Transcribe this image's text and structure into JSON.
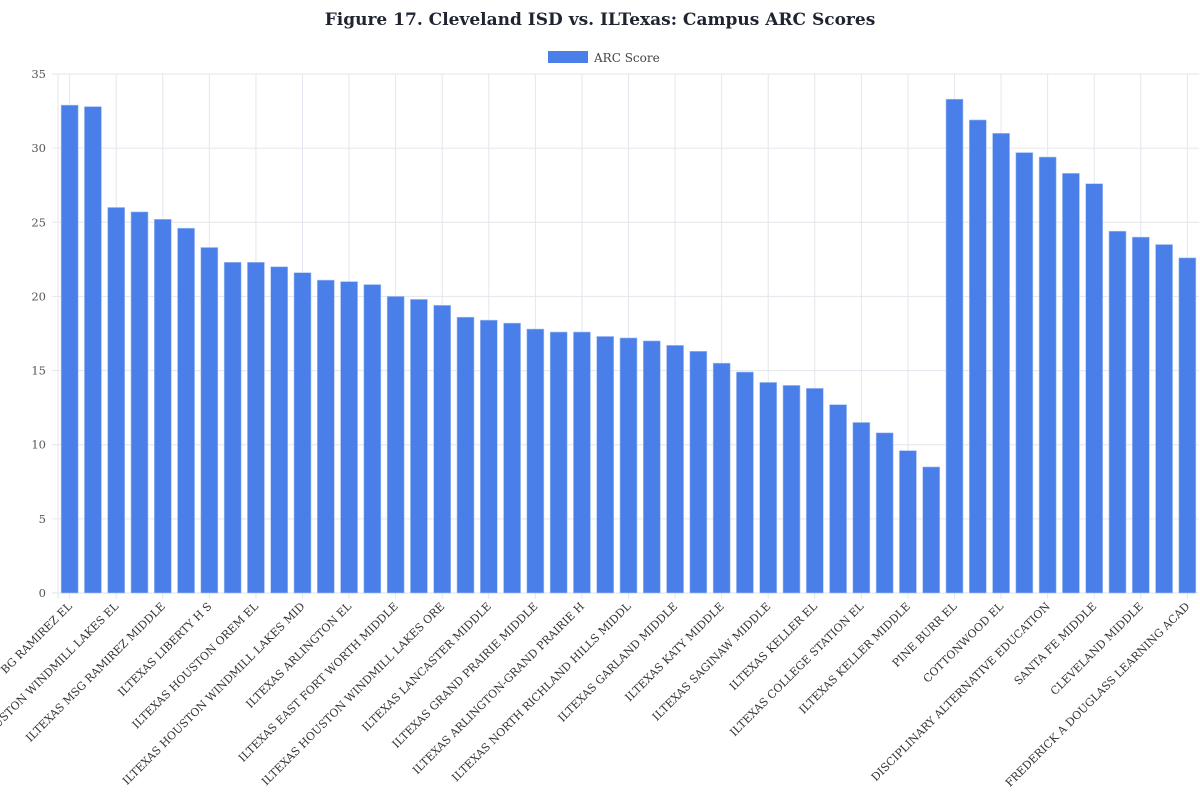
{
  "chart_data": {
    "type": "bar",
    "title": "Figure 17. Cleveland ISD vs. ILTexas: Campus ARC Scores",
    "xlabel": "",
    "ylabel": "",
    "ylim": [
      0,
      35
    ],
    "yticks": [
      0,
      5,
      10,
      15,
      20,
      25,
      30,
      35
    ],
    "grid": true,
    "legend_position": "top",
    "bar_color": "#4a7fe9",
    "categories": [
      "BG RAMIREZ EL",
      "",
      "ILTEXAS HOUSTON WINDMILL LAKES EL",
      "",
      "ILTEXAS MSG RAMIREZ MIDDLE",
      "",
      "ILTEXAS LIBERTY H S",
      "",
      "ILTEXAS HOUSTON OREM EL",
      "",
      "ILTEXAS HOUSTON WINDMILL LAKES MID",
      "",
      "ILTEXAS ARLINGTON EL",
      "",
      "ILTEXAS EAST FORT WORTH MIDDLE",
      "",
      "ILTEXAS HOUSTON WINDMILL LAKES ORE",
      "",
      "ILTEXAS LANCASTER MIDDLE",
      "",
      "ILTEXAS GRAND PRAIRIE MIDDLE",
      "",
      "ILTEXAS ARLINGTON-GRAND PRAIRIE H",
      "",
      "ILTEXAS NORTH RICHLAND HILLS MIDDL",
      "",
      "ILTEXAS GARLAND MIDDLE",
      "",
      "ILTEXAS KATY MIDDLE",
      "",
      "ILTEXAS SAGINAW MIDDLE",
      "",
      "ILTEXAS KELLER EL",
      "",
      "ILTEXAS COLLEGE STATION EL",
      "",
      "ILTEXAS KELLER MIDDLE",
      "",
      "PINE BURR EL",
      "",
      "COTTONWOOD EL",
      "",
      "DISCIPLINARY ALTERNATIVE EDUCATION",
      "",
      "SANTA FE MIDDLE",
      "",
      "CLEVELAND MIDDLE",
      "",
      "FREDERICK A DOUGLASS LEARNING ACAD"
    ],
    "series": [
      {
        "name": "ARC Score",
        "values": [
          32.9,
          32.8,
          26.0,
          25.7,
          25.2,
          24.6,
          23.3,
          22.3,
          22.3,
          22.0,
          21.6,
          21.1,
          21.0,
          20.8,
          20.0,
          19.8,
          19.4,
          18.6,
          18.4,
          18.2,
          17.8,
          17.6,
          17.6,
          17.3,
          17.2,
          17.0,
          16.7,
          16.3,
          15.5,
          14.9,
          14.2,
          14.0,
          13.8,
          12.7,
          11.5,
          10.8,
          9.6,
          8.5,
          33.3,
          31.9,
          31.0,
          29.7,
          29.4,
          28.3,
          27.6,
          24.4,
          24.0,
          23.5,
          22.6
        ]
      }
    ]
  }
}
